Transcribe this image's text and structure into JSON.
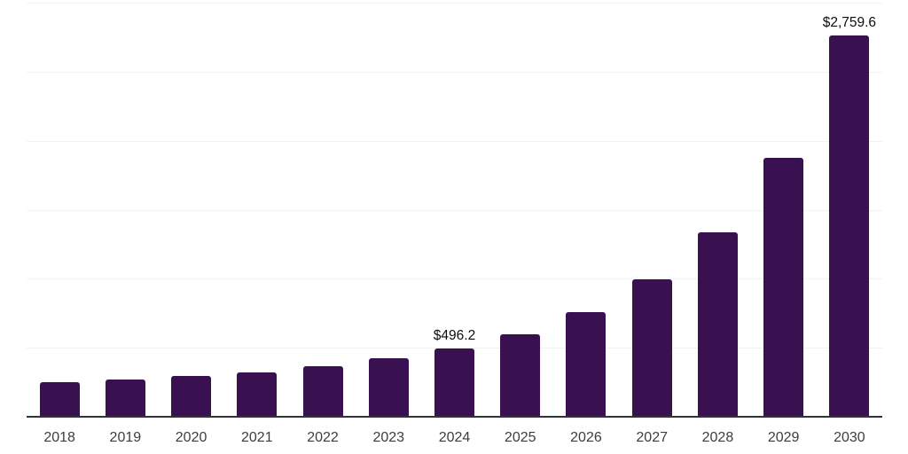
{
  "chart_data": {
    "type": "bar",
    "title": "",
    "xlabel": "",
    "ylabel": "",
    "categories": [
      "2018",
      "2019",
      "2020",
      "2021",
      "2022",
      "2023",
      "2024",
      "2025",
      "2026",
      "2027",
      "2028",
      "2029",
      "2030"
    ],
    "values": [
      250.0,
      270.0,
      296.5,
      321.5,
      364.0,
      422.0,
      496.2,
      600.5,
      758.0,
      993.5,
      1337.0,
      1875.0,
      2759.6
    ],
    "point_labels": [
      "",
      "",
      "",
      "",
      "",
      "",
      "$496.2",
      "",
      "",
      "",
      "",
      "",
      "$2,759.6"
    ],
    "labeled_values": {
      "2024": "$496.2",
      "2030": "$2,759.6"
    },
    "ylim": [
      0,
      3000
    ],
    "gridline_interval": 500,
    "grid": "horizontal",
    "legend": "none",
    "colors": {
      "bar": "#3a1150",
      "gridline": "#f2f2f2",
      "axis_line": "#333333",
      "tick_label": "#3d3d3d",
      "data_label": "#0d0d0d",
      "background": "#ffffff"
    }
  }
}
